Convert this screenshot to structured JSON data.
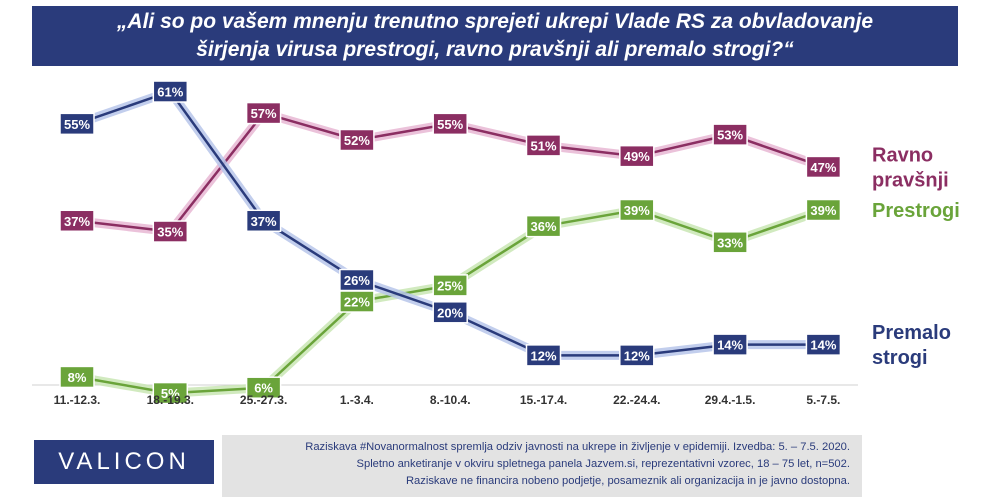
{
  "title": {
    "line1": "„Ali so po vašem mnenju trenutno sprejeti ukrepi Vlade RS za obvladovanje",
    "line2": "širjenja virusa prestrogi, ravno pravšnji ali premalo strogi?“"
  },
  "chart_data": {
    "type": "line",
    "categories": [
      "11.-12.3.",
      "18.-19.3.",
      "25.-27.3.",
      "1.-3.4.",
      "8.-10.4.",
      "15.-17.4.",
      "22.-24.4.",
      "29.4.-1.5.",
      "5.-7.5."
    ],
    "ylim": [
      0,
      65
    ],
    "grid": false,
    "legend": "right",
    "series": [
      {
        "key": "ravno",
        "name_lines": [
          "Ravno",
          "pravšnji"
        ],
        "color": "#8b2e62",
        "glow": "#e7b7d3",
        "values": [
          37,
          35,
          57,
          52,
          55,
          51,
          49,
          53,
          47
        ]
      },
      {
        "key": "prestrogi",
        "name_lines": [
          "Prestrogi"
        ],
        "color": "#6aa43a",
        "glow": "#c9e6b4",
        "values": [
          8,
          5,
          6,
          22,
          25,
          36,
          39,
          33,
          39
        ]
      },
      {
        "key": "premalo",
        "name_lines": [
          "Premalo",
          "strogi"
        ],
        "color": "#2a3b7b",
        "glow": "#b7c6ea",
        "values": [
          55,
          61,
          37,
          26,
          20,
          12,
          12,
          14,
          14
        ]
      }
    ]
  },
  "footer": {
    "logo": "VALICON",
    "notes": [
      "Raziskava #Novanormalnost spremlja odziv javnosti na ukrepe in življenje v epidemiji. Izvedba: 5. – 7.5. 2020.",
      "Spletno anketiranje v okviru spletnega panela Jazvem.si, reprezentativni vzorec, 18 – 75 let, n=502.",
      "Raziskave ne financira nobeno podjetje, posameznik ali organizacija in je javno dostopna."
    ]
  }
}
